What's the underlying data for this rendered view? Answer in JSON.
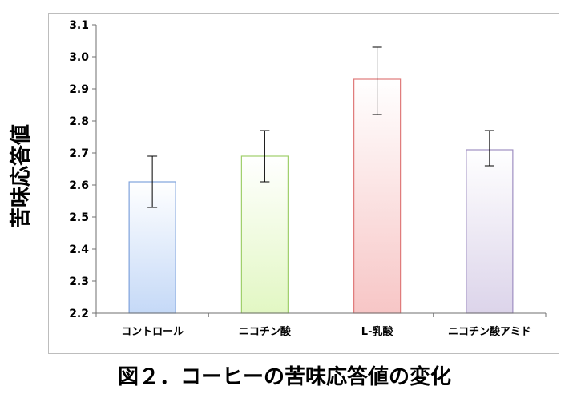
{
  "chart_data": {
    "type": "bar",
    "categories": [
      "コントロール",
      "ニコチン酸",
      "L-乳酸",
      "ニコチン酸アミド"
    ],
    "values": [
      2.61,
      2.69,
      2.93,
      2.71
    ],
    "error_bars": [
      {
        "low": 2.53,
        "high": 2.69
      },
      {
        "low": 2.61,
        "high": 2.77
      },
      {
        "low": 2.82,
        "high": 3.03
      },
      {
        "low": 2.66,
        "high": 2.77
      }
    ],
    "ylabel": "苦味応答値",
    "xlabel": "",
    "ylim": [
      2.2,
      3.1
    ],
    "yticks": [
      "2.2",
      "2.3",
      "2.4",
      "2.5",
      "2.6",
      "2.7",
      "2.8",
      "2.9",
      "3.0",
      "3.1"
    ],
    "bar_colors": [
      {
        "fill": "#c5d9f7",
        "stroke": "#7fa3dc"
      },
      {
        "fill": "#e2f7c3",
        "stroke": "#9fcf6a"
      },
      {
        "fill": "#f7c6c6",
        "stroke": "#e07a7a"
      },
      {
        "fill": "#dcd4ea",
        "stroke": "#9f8fc2"
      }
    ],
    "grid": false,
    "legend": "none"
  },
  "caption": "図２．コーヒーの苦味応答値の変化"
}
